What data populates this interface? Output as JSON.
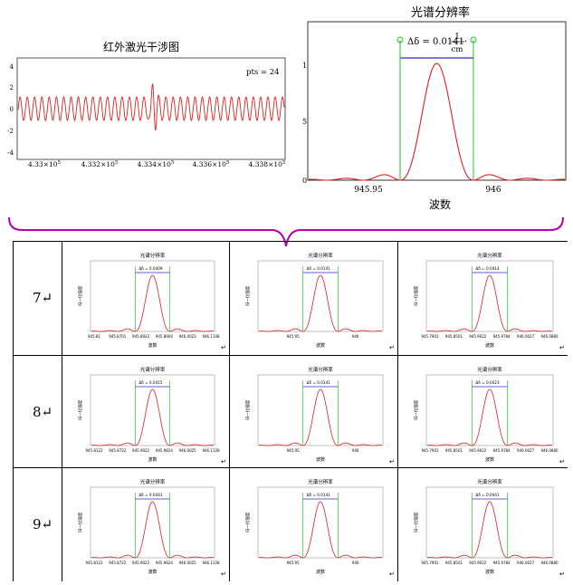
{
  "top_left_chart": {
    "title": "红外激光干涉图",
    "annotation": "pts = 24",
    "yticks": [
      "4",
      "2",
      "0",
      "-2",
      "-4"
    ],
    "xticks": [
      {
        "base": "4.33×10",
        "exp": "5"
      },
      {
        "base": "4.332×10",
        "exp": "5"
      },
      {
        "base": "4.334×10",
        "exp": "5"
      },
      {
        "base": "4.336×10",
        "exp": "5"
      },
      {
        "base": "4.338×10",
        "exp": "5"
      }
    ]
  },
  "top_right_chart": {
    "title": "光谱分辨率",
    "delta_prefix": "Δδ = 0.0141·",
    "delta_num": "1",
    "delta_den": "cm",
    "yticks": [
      "1",
      "5",
      "0"
    ],
    "xticks": [
      "945.95",
      "946"
    ],
    "xlabel": "波数"
  },
  "table": {
    "rows": [
      {
        "label": "7↵",
        "cells": [
          {
            "title": "光谱分辨率",
            "delta": "Δδ = 0.0409",
            "xticks": [
              "945.81",
              "945.8701",
              "945.8922",
              "945.8904",
              "946.0023",
              "946.1108"
            ],
            "xlabel": "波数",
            "ylabel": "归一化强度"
          },
          {
            "title": "光谱分辨率",
            "delta": "Δδ = 0.0141",
            "xticks": [
              "945.95",
              "946"
            ],
            "xlabel": "波数",
            "ylabel": "归一化强度"
          },
          {
            "title": "光谱分辨率",
            "delta": "Δδ = 0.0414",
            "xticks": [
              "945.7901",
              "945.8501",
              "945.9022",
              "945.9784",
              "946.0027",
              "946.0880"
            ],
            "xlabel": "波数",
            "ylabel": "归一化强度"
          }
        ]
      },
      {
        "label": "8↵",
        "cells": [
          {
            "title": "光谱分辨率",
            "delta": "Δδ = 0.0415",
            "xticks": [
              "945.8122",
              "945.8722",
              "945.9022",
              "945.9824",
              "946.0025",
              "946.1128"
            ],
            "xlabel": "波数",
            "ylabel": "归一化强度"
          },
          {
            "title": "光谱分辨率",
            "delta": "Δδ = 0.0141",
            "xticks": [
              "945.95",
              "946"
            ],
            "xlabel": "波数",
            "ylabel": "归一化强度"
          },
          {
            "title": "光谱分辨率",
            "delta": "Δδ = 0.0423",
            "xticks": [
              "945.7901",
              "945.8501",
              "945.9022",
              "945.9784",
              "946.0027",
              "946.0880"
            ],
            "xlabel": "波数",
            "ylabel": "归一化强度"
          }
        ]
      },
      {
        "label": "9↵",
        "cells": [
          {
            "title": "光谱分辨率",
            "delta": "Δδ = 0.0441",
            "xticks": [
              "945.8122",
              "945.8722",
              "945.9022",
              "945.9824",
              "946.0025",
              "946.1128"
            ],
            "xlabel": "波数",
            "ylabel": "归一化强度"
          },
          {
            "title": "光谱分辨率",
            "delta": "Δδ = 0.0141",
            "xticks": [
              "945.95",
              "946"
            ],
            "xlabel": "波数",
            "ylabel": "归一化强度"
          },
          {
            "title": "光谱分辨率",
            "delta": "Δδ = 0.0441",
            "xticks": [
              "945.7901",
              "945.8501",
              "945.9022",
              "945.9784",
              "946.0027",
              "946.0880"
            ],
            "xlabel": "波数",
            "ylabel": "归一化强度"
          }
        ]
      }
    ]
  },
  "para_mark": "↵",
  "colors": {
    "curve": "#e02020",
    "bracket": "#b000b0",
    "marker": "#27c627",
    "measure": "#2b2bd8",
    "frame": "#555555"
  }
}
